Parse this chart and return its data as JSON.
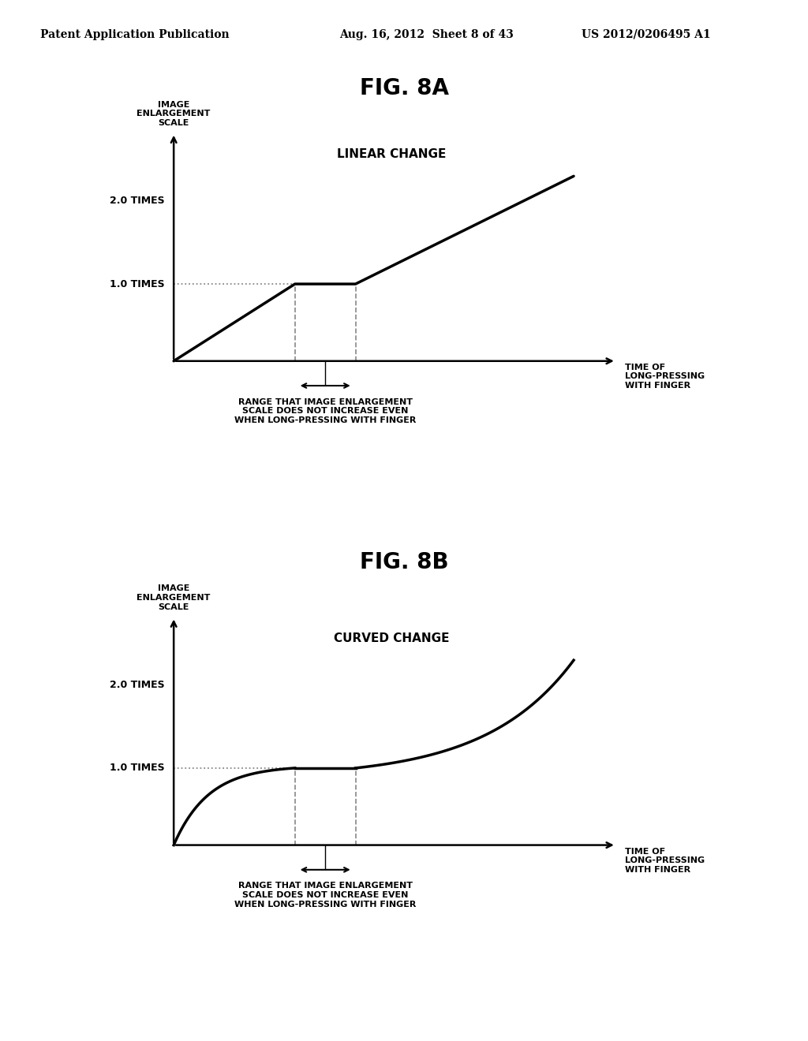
{
  "background_color": "#ffffff",
  "header_left": "Patent Application Publication",
  "header_mid": "Aug. 16, 2012  Sheet 8 of 43",
  "header_right": "US 2012/0206495 A1",
  "fig8a_title": "FIG. 8A",
  "fig8b_title": "FIG. 8B",
  "ylabel_text": "IMAGE\nENLARGEMENT\nSCALE",
  "xlabel_line1": "TIME OF",
  "xlabel_line2": "LONG-PRESSING",
  "xlabel_line3": "WITH FINGER",
  "label_1times": "1.0 TIMES",
  "label_2times": "2.0 TIMES",
  "linear_label": "LINEAR CHANGE",
  "curved_label": "CURVED CHANGE",
  "range_label_line1": "RANGE THAT IMAGE ENLARGEMENT",
  "range_label_line2": "SCALE DOES NOT INCREASE EVEN",
  "range_label_line3": "WHEN LONG-PRESSING WITH FINGER",
  "font_color": "#000000",
  "line_color": "#000000",
  "dashed_color": "#888888",
  "header_fontsize": 10,
  "title_fontsize": 20,
  "axis_label_fontsize": 8,
  "tick_label_fontsize": 9,
  "change_label_fontsize": 11,
  "range_label_fontsize": 8
}
